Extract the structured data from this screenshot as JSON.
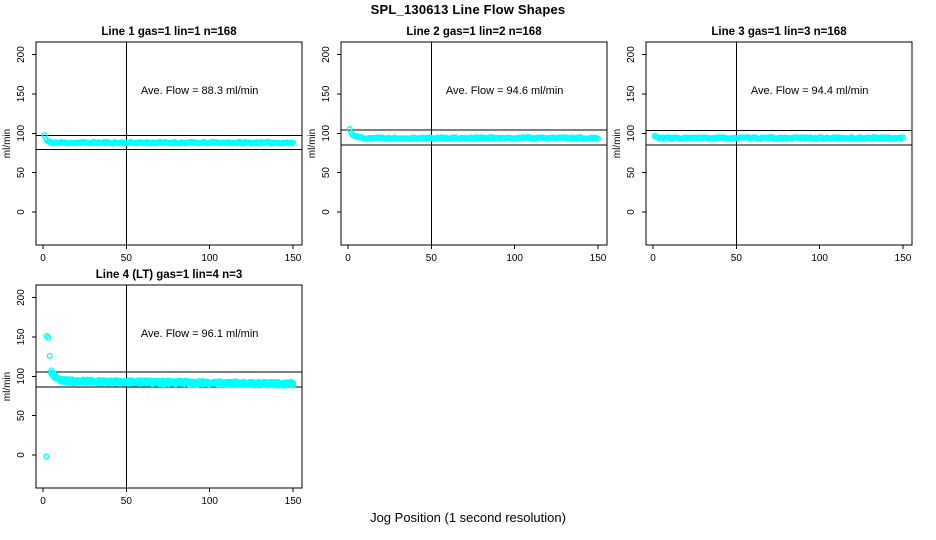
{
  "figure": {
    "title": "SPL_130613  Line Flow Shapes",
    "xlabel": "Jog Position (1 second resolution)",
    "background_color": "#ffffff",
    "marker_color": "#00ffff",
    "axis_color": "#000000"
  },
  "chart_data": [
    {
      "type": "scatter",
      "title": "Line 1 gas=1 lin=1 n=168",
      "annotation": "Ave. Flow =  88.3  ml/min",
      "ave_flow_ml_min": 88.3,
      "n": 168,
      "ylabel": "ml/min",
      "x_ticks": [
        0,
        50,
        100,
        150
      ],
      "y_ticks": [
        0,
        50,
        100,
        150,
        200
      ],
      "x_range": [
        -4.2,
        155.4
      ],
      "y_range": [
        -42,
        216
      ],
      "vline_x": 50,
      "hlines_y": [
        97.1,
        79.5
      ],
      "annotation_pos": [
        94,
        150
      ],
      "points_model": {
        "n": 168,
        "x_start": 1,
        "x_end": 150,
        "steady": 88,
        "start_amp": 9.5,
        "decay_tau": 1.1,
        "jitter": 1.1,
        "slope": 0,
        "passes": 1,
        "seed": 11
      },
      "outlier_points": []
    },
    {
      "type": "scatter",
      "title": "Line 2 gas=1 lin=2 n=168",
      "annotation": "Ave. Flow =  94.6  ml/min",
      "ave_flow_ml_min": 94.6,
      "n": 168,
      "ylabel": "ml/min",
      "x_ticks": [
        0,
        50,
        100,
        150
      ],
      "y_ticks": [
        0,
        50,
        100,
        150,
        200
      ],
      "x_range": [
        -4.2,
        155.4
      ],
      "y_range": [
        -42,
        216
      ],
      "vline_x": 50,
      "hlines_y": [
        104.1,
        85.1
      ],
      "annotation_pos": [
        94,
        150
      ],
      "points_model": {
        "n": 168,
        "x_start": 1,
        "x_end": 150,
        "steady": 94,
        "start_amp": 11,
        "decay_tau": 2.2,
        "jitter": 1.1,
        "slope": 0,
        "passes": 1,
        "seed": 22
      },
      "outlier_points": []
    },
    {
      "type": "scatter",
      "title": "Line 3 gas=1 lin=3 n=168",
      "annotation": "Ave. Flow =  94.4  ml/min",
      "ave_flow_ml_min": 94.4,
      "n": 168,
      "ylabel": "ml/min",
      "x_ticks": [
        0,
        50,
        100,
        150
      ],
      "y_ticks": [
        0,
        50,
        100,
        150,
        200
      ],
      "x_range": [
        -4.2,
        155.4
      ],
      "y_range": [
        -42,
        216
      ],
      "vline_x": 50,
      "hlines_y": [
        103.8,
        85.0
      ],
      "annotation_pos": [
        94,
        150
      ],
      "points_model": {
        "n": 168,
        "x_start": 1,
        "x_end": 150,
        "steady": 94,
        "start_amp": 2.5,
        "decay_tau": 1.5,
        "jitter": 1.0,
        "slope": 0,
        "passes": 1,
        "seed": 33
      },
      "outlier_points": []
    },
    {
      "type": "scatter",
      "title": "Line 4 (LT) gas=1 lin=4 n=3",
      "annotation": "Ave. Flow =  96.1  ml/min",
      "ave_flow_ml_min": 96.1,
      "n": 3,
      "ylabel": "ml/min",
      "x_ticks": [
        0,
        50,
        100,
        150
      ],
      "y_ticks": [
        0,
        50,
        100,
        150,
        200
      ],
      "x_range": [
        -4.2,
        155.4
      ],
      "y_range": [
        -42,
        216
      ],
      "vline_x": 50,
      "hlines_y": [
        105.7,
        86.5
      ],
      "annotation_pos": [
        94,
        150
      ],
      "points_model": {
        "n": 168,
        "x_start": 5,
        "x_end": 150,
        "steady": 94,
        "start_amp": 12,
        "decay_tau": 3.0,
        "jitter": 2.4,
        "slope": -0.025,
        "passes": 3,
        "seed": 44
      },
      "outlier_points": [
        [
          2.2,
          151
        ],
        [
          3.1,
          149
        ],
        [
          4.0,
          126
        ],
        [
          2.0,
          -2
        ]
      ]
    }
  ]
}
